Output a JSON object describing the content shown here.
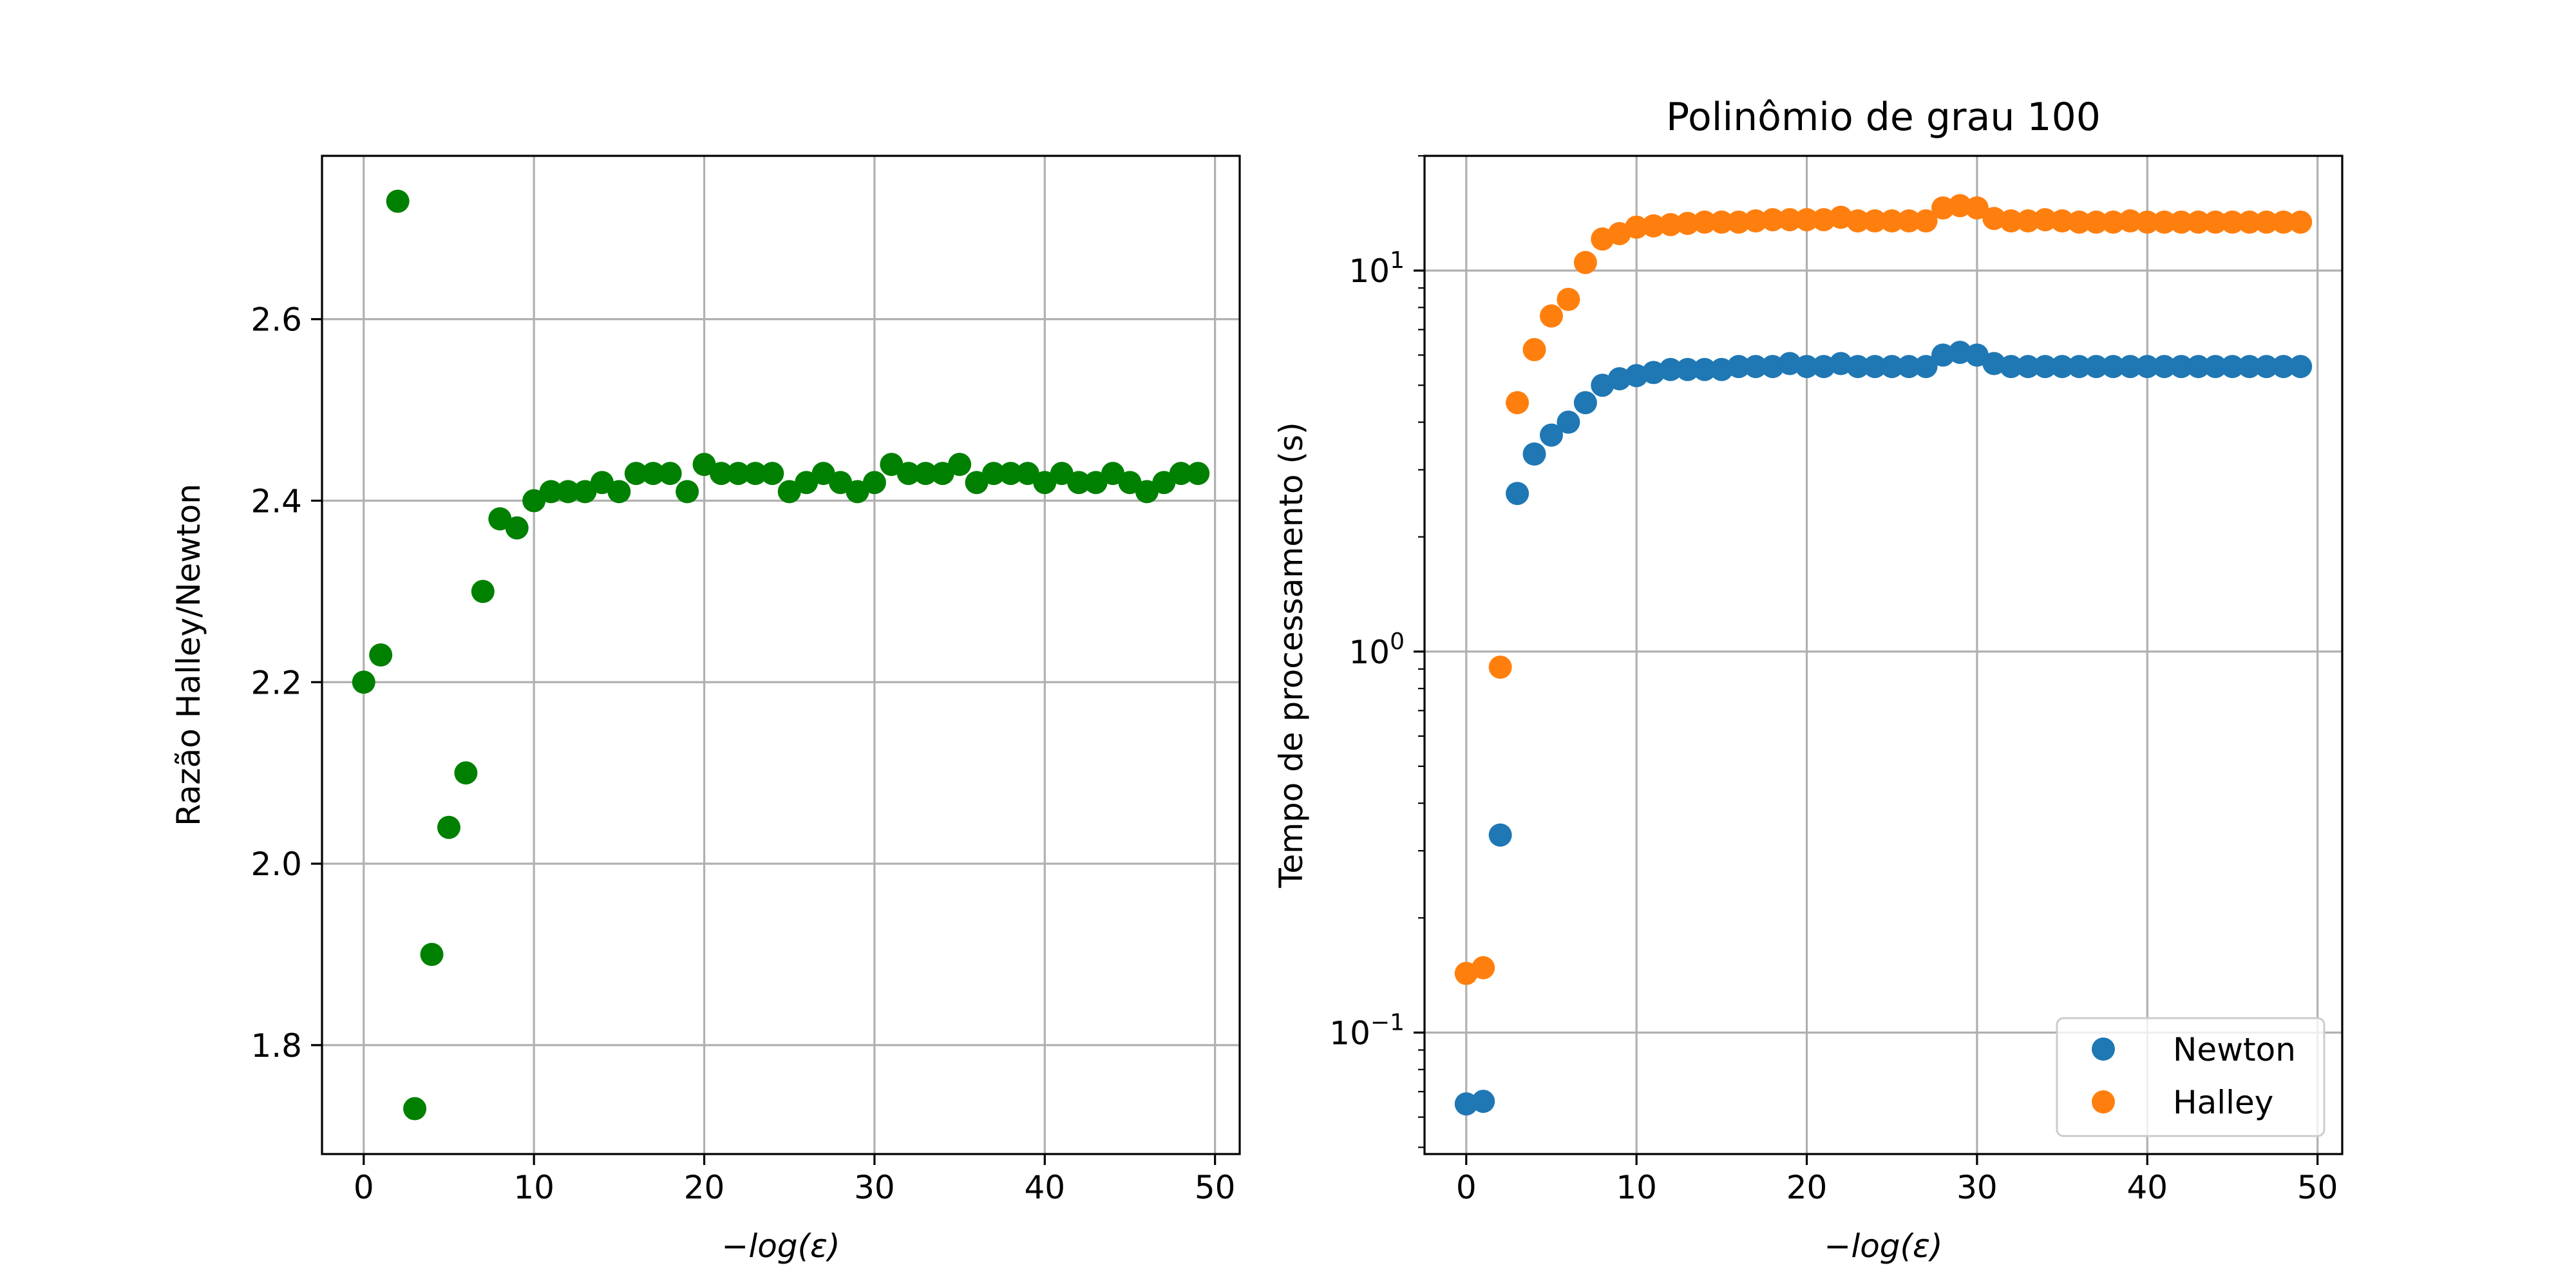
{
  "chart_data": [
    {
      "type": "scatter",
      "title": "",
      "xlabel": "−log(ε)",
      "ylabel": "Razão Halley/Newton",
      "xlim": [
        -2.45,
        51.45
      ],
      "ylim": [
        1.68,
        2.78
      ],
      "xticks": [
        0,
        10,
        20,
        30,
        40,
        50
      ],
      "yticks": [
        1.8,
        2.0,
        2.2,
        2.4,
        2.6
      ],
      "ytick_labels": [
        "1.8",
        "2.0",
        "2.2",
        "2.4",
        "2.6"
      ],
      "grid": true,
      "legend": null,
      "series": [
        {
          "color": "#008000",
          "x": [
            0,
            1,
            2,
            3,
            4,
            5,
            6,
            7,
            8,
            9,
            10,
            11,
            12,
            13,
            14,
            15,
            16,
            17,
            18,
            19,
            20,
            21,
            22,
            23,
            24,
            25,
            26,
            27,
            28,
            29,
            30,
            31,
            32,
            33,
            34,
            35,
            36,
            37,
            38,
            39,
            40,
            41,
            42,
            43,
            44,
            45,
            46,
            47,
            48,
            49
          ],
          "y": [
            2.2,
            2.23,
            2.73,
            1.73,
            1.9,
            2.04,
            2.1,
            2.3,
            2.38,
            2.37,
            2.4,
            2.41,
            2.41,
            2.41,
            2.42,
            2.41,
            2.43,
            2.43,
            2.43,
            2.41,
            2.44,
            2.43,
            2.43,
            2.43,
            2.43,
            2.41,
            2.42,
            2.43,
            2.42,
            2.41,
            2.42,
            2.44,
            2.43,
            2.43,
            2.43,
            2.44,
            2.42,
            2.43,
            2.43,
            2.43,
            2.42,
            2.43,
            2.42,
            2.42,
            2.43,
            2.42,
            2.41,
            2.42,
            2.43,
            2.43
          ]
        }
      ]
    },
    {
      "type": "scatter",
      "title": "Polinômio de grau 100",
      "xlabel": "−log(ε)",
      "ylabel": "Tempo de processamento (s)",
      "xlim": [
        -2.45,
        51.45
      ],
      "ylim": [
        0.048,
        20
      ],
      "yscale": "log",
      "xticks": [
        0,
        10,
        20,
        30,
        40,
        50
      ],
      "yticks_major": [
        0.1,
        1,
        10
      ],
      "ytick_labels": [
        {
          "base": "10",
          "exp": "−1"
        },
        {
          "base": "10",
          "exp": "0"
        },
        {
          "base": "10",
          "exp": "1"
        }
      ],
      "grid": true,
      "legend": "lower right",
      "series": [
        {
          "name": "Newton",
          "color": "#1f77b4",
          "x": [
            0,
            1,
            2,
            3,
            4,
            5,
            6,
            7,
            8,
            9,
            10,
            11,
            12,
            13,
            14,
            15,
            16,
            17,
            18,
            19,
            20,
            21,
            22,
            23,
            24,
            25,
            26,
            27,
            28,
            29,
            30,
            31,
            32,
            33,
            34,
            35,
            36,
            37,
            38,
            39,
            40,
            41,
            42,
            43,
            44,
            45,
            46,
            47,
            48,
            49
          ],
          "y": [
            0.065,
            0.066,
            0.33,
            2.6,
            3.3,
            3.7,
            4.0,
            4.5,
            5.0,
            5.2,
            5.3,
            5.4,
            5.5,
            5.5,
            5.5,
            5.5,
            5.6,
            5.6,
            5.6,
            5.7,
            5.6,
            5.6,
            5.7,
            5.6,
            5.6,
            5.6,
            5.6,
            5.6,
            6.0,
            6.1,
            6.0,
            5.7,
            5.6,
            5.6,
            5.6,
            5.6,
            5.6,
            5.6,
            5.6,
            5.6,
            5.6,
            5.6,
            5.6,
            5.6,
            5.6,
            5.6,
            5.6,
            5.6,
            5.6,
            5.6
          ]
        },
        {
          "name": "Halley",
          "color": "#ff7f0e",
          "x": [
            0,
            1,
            2,
            3,
            4,
            5,
            6,
            7,
            8,
            9,
            10,
            11,
            12,
            13,
            14,
            15,
            16,
            17,
            18,
            19,
            20,
            21,
            22,
            23,
            24,
            25,
            26,
            27,
            28,
            29,
            30,
            31,
            32,
            33,
            34,
            35,
            36,
            37,
            38,
            39,
            40,
            41,
            42,
            43,
            44,
            45,
            46,
            47,
            48,
            49
          ],
          "y": [
            0.143,
            0.148,
            0.91,
            4.5,
            6.2,
            7.6,
            8.4,
            10.5,
            12.1,
            12.5,
            13.0,
            13.1,
            13.2,
            13.3,
            13.4,
            13.4,
            13.4,
            13.5,
            13.6,
            13.6,
            13.6,
            13.6,
            13.8,
            13.5,
            13.5,
            13.5,
            13.5,
            13.5,
            14.6,
            14.8,
            14.6,
            13.7,
            13.5,
            13.5,
            13.6,
            13.5,
            13.4,
            13.4,
            13.4,
            13.5,
            13.4,
            13.4,
            13.4,
            13.4,
            13.4,
            13.4,
            13.4,
            13.4,
            13.4,
            13.4
          ]
        }
      ]
    }
  ]
}
